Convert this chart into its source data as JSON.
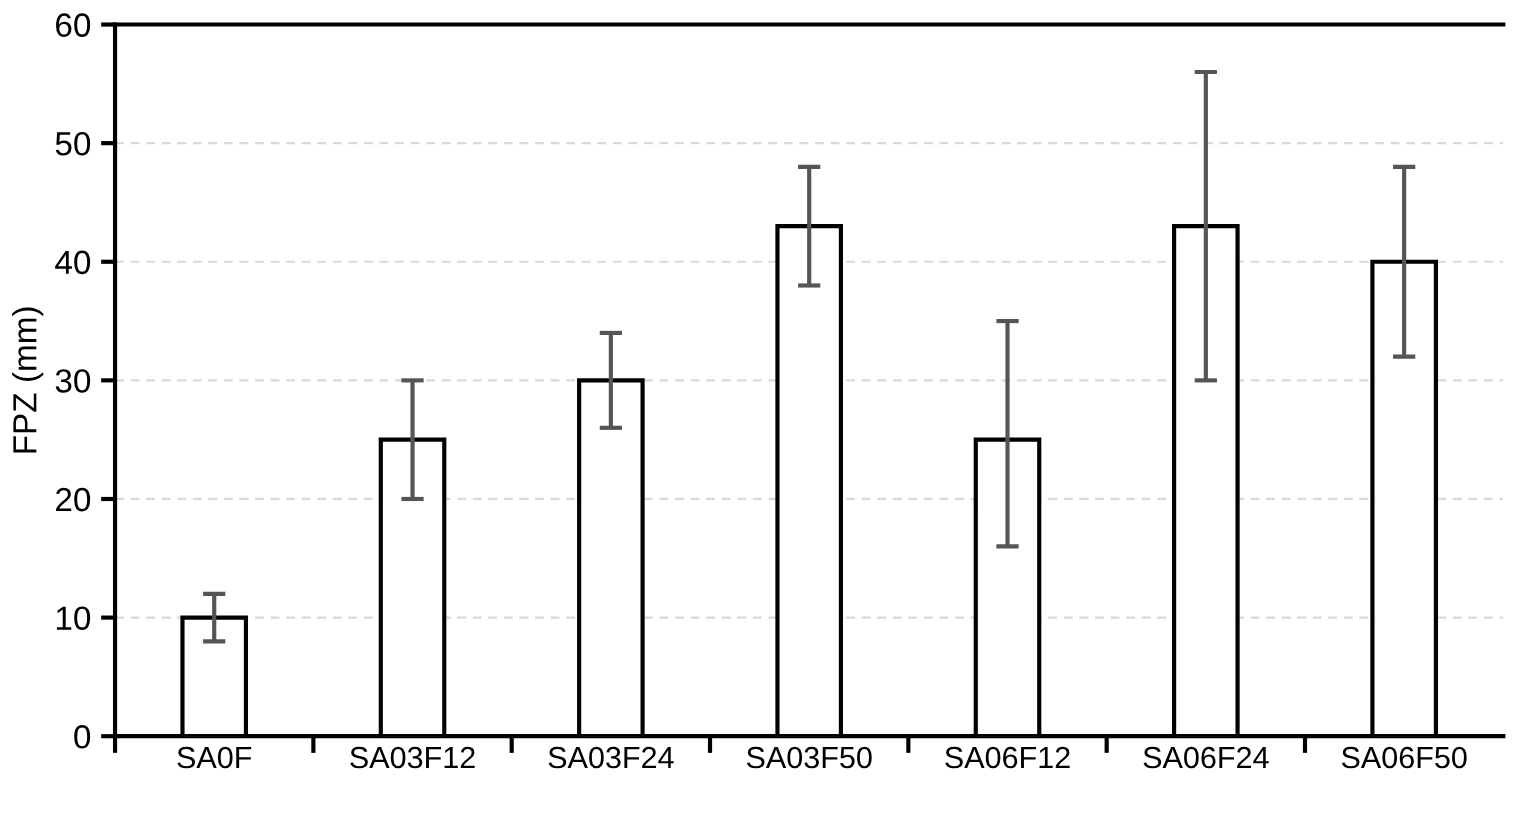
{
  "chart_data": {
    "type": "bar",
    "ylabel": "FPZ (mm)",
    "categories": [
      "SA0F",
      "SA03F12",
      "SA03F24",
      "SA03F50",
      "SA06F12",
      "SA06F24",
      "SA06F50"
    ],
    "values": [
      10,
      25,
      30,
      43,
      25,
      43,
      40
    ],
    "errors": [
      [
        8,
        12
      ],
      [
        20,
        30
      ],
      [
        26,
        34
      ],
      [
        38,
        48
      ],
      [
        16,
        35
      ],
      [
        30,
        56
      ],
      [
        32,
        48
      ]
    ],
    "color": "#ffffff",
    "ylim": [
      0,
      60
    ],
    "yticks": [
      0,
      10,
      20,
      30,
      40,
      50,
      60
    ],
    "grid": "y"
  }
}
